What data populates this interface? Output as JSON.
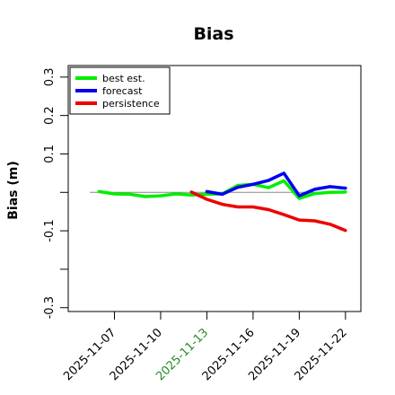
{
  "chart_data": {
    "type": "line",
    "title": "Bias",
    "xlabel": "",
    "ylabel": "Bias (m)",
    "ylim": [
      -0.31,
      0.33
    ],
    "yticks": [
      {
        "value": 0.3,
        "label": "0.3"
      },
      {
        "value": 0.2,
        "label": "0.2"
      },
      {
        "value": 0.1,
        "label": "0.1"
      },
      {
        "value": 0.0,
        "label": ""
      },
      {
        "value": -0.1,
        "label": "-0.1"
      },
      {
        "value": -0.2,
        "label": ""
      },
      {
        "value": -0.3,
        "label": "-0.3"
      }
    ],
    "xticks": [
      {
        "label": "2025-11-07",
        "color": "#000000"
      },
      {
        "label": "2025-11-10",
        "color": "#000000"
      },
      {
        "label": "2025-11-13",
        "color": "#228b22"
      },
      {
        "label": "2025-11-16",
        "color": "#000000"
      },
      {
        "label": "2025-11-19",
        "color": "#000000"
      },
      {
        "label": "2025-11-22",
        "color": "#000000"
      }
    ],
    "xlim": [
      "2025-11-04",
      "2025-11-23"
    ],
    "zero_line": true,
    "grid": false,
    "legend_position": "top-left",
    "series": [
      {
        "name": "best est.",
        "color": "#00ee00",
        "points": [
          [
            "2025-11-06",
            0.002
          ],
          [
            "2025-11-07",
            -0.004
          ],
          [
            "2025-11-08",
            -0.005
          ],
          [
            "2025-11-09",
            -0.011
          ],
          [
            "2025-11-10",
            -0.009
          ],
          [
            "2025-11-11",
            -0.004
          ],
          [
            "2025-11-12",
            -0.007
          ],
          [
            "2025-11-13",
            -0.005
          ],
          [
            "2025-11-14",
            -0.004
          ],
          [
            "2025-11-15",
            0.018
          ],
          [
            "2025-11-16",
            0.021
          ],
          [
            "2025-11-17",
            0.012
          ],
          [
            "2025-11-18",
            0.03
          ],
          [
            "2025-11-19",
            -0.016
          ],
          [
            "2025-11-20",
            -0.003
          ],
          [
            "2025-11-21",
            0.0
          ],
          [
            "2025-11-22",
            0.001
          ]
        ]
      },
      {
        "name": "forecast",
        "color": "#0000ee",
        "points": [
          [
            "2025-11-13",
            0.002
          ],
          [
            "2025-11-14",
            -0.005
          ],
          [
            "2025-11-15",
            0.013
          ],
          [
            "2025-11-16",
            0.021
          ],
          [
            "2025-11-17",
            0.031
          ],
          [
            "2025-11-18",
            0.05
          ],
          [
            "2025-11-19",
            -0.009
          ],
          [
            "2025-11-20",
            0.008
          ],
          [
            "2025-11-21",
            0.015
          ],
          [
            "2025-11-22",
            0.011
          ]
        ]
      },
      {
        "name": "persistence",
        "color": "#ee0000",
        "points": [
          [
            "2025-11-12",
            0.001
          ],
          [
            "2025-11-13",
            -0.018
          ],
          [
            "2025-11-14",
            -0.031
          ],
          [
            "2025-11-15",
            -0.038
          ],
          [
            "2025-11-16",
            -0.038
          ],
          [
            "2025-11-17",
            -0.045
          ],
          [
            "2025-11-18",
            -0.058
          ],
          [
            "2025-11-19",
            -0.072
          ],
          [
            "2025-11-20",
            -0.074
          ],
          [
            "2025-11-21",
            -0.083
          ],
          [
            "2025-11-22",
            -0.099
          ]
        ]
      }
    ]
  }
}
